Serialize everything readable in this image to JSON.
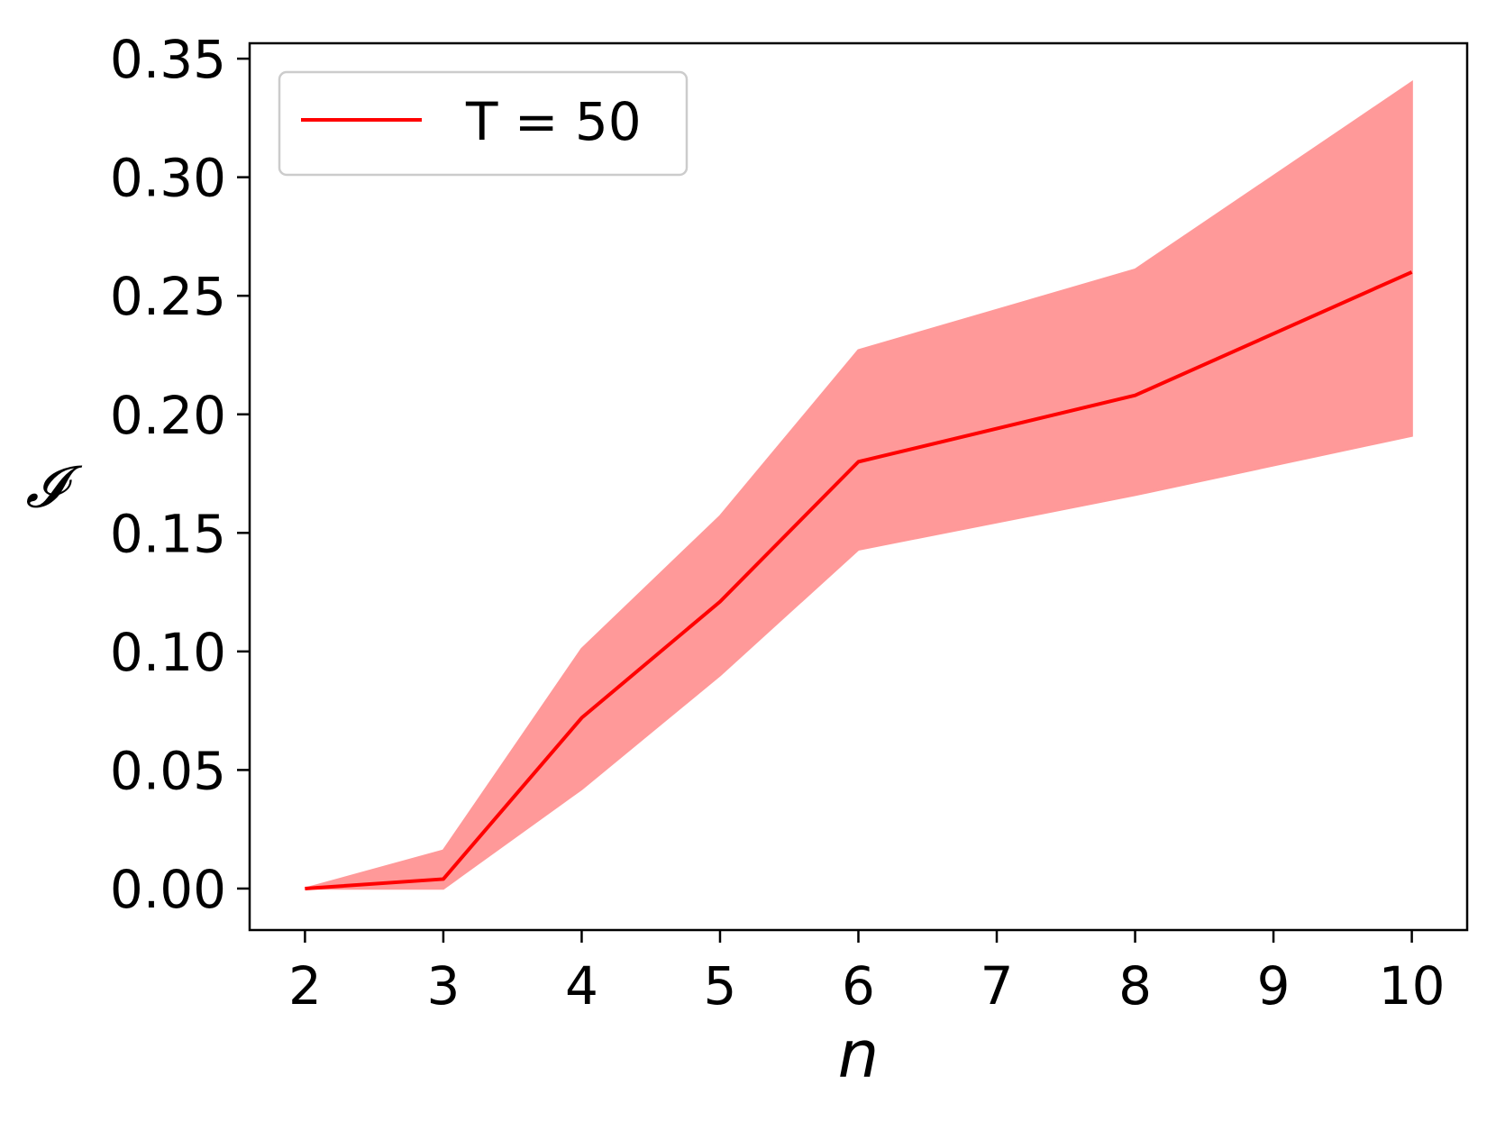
{
  "chart_data": {
    "type": "line",
    "xlabel": "n",
    "ylabel": "𝓘",
    "xlim": [
      1.6,
      10.4
    ],
    "ylim": [
      -0.0175,
      0.3565
    ],
    "x_ticks": [
      2,
      3,
      4,
      5,
      6,
      7,
      8,
      9,
      10
    ],
    "x_tick_labels": [
      "2",
      "3",
      "4",
      "5",
      "6",
      "7",
      "8",
      "9",
      "10"
    ],
    "y_ticks": [
      0.0,
      0.05,
      0.1,
      0.15,
      0.2,
      0.25,
      0.3,
      0.35
    ],
    "y_tick_labels": [
      "0.00",
      "0.05",
      "0.10",
      "0.15",
      "0.20",
      "0.25",
      "0.30",
      "0.35"
    ],
    "grid": false,
    "legend_placement": "top-left",
    "series": [
      {
        "name": "T = 50",
        "color": "#ff0000",
        "band_color": "#ff9999",
        "x": [
          2,
          3,
          4,
          5,
          6,
          8,
          10
        ],
        "y": [
          0.0,
          0.004,
          0.072,
          0.121,
          0.18,
          0.208,
          0.26
        ],
        "upper": [
          0.0,
          0.016,
          0.101,
          0.157,
          0.227,
          0.261,
          0.34
        ],
        "lower": [
          0.0,
          0.0,
          0.042,
          0.09,
          0.143,
          0.166,
          0.191
        ]
      }
    ]
  }
}
